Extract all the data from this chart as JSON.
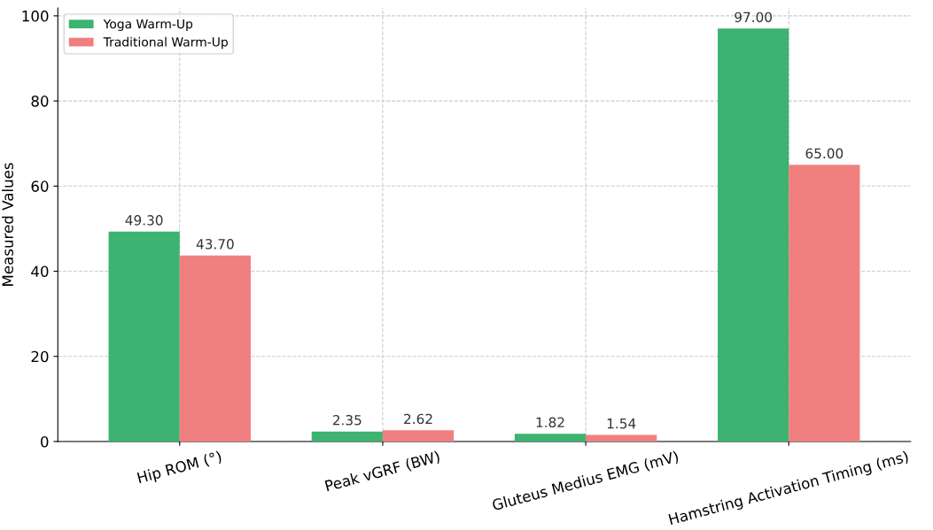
{
  "chart_data": {
    "type": "bar",
    "ylabel": "Measured Values",
    "categories": [
      "Hip ROM (°)",
      "Peak vGRF (BW)",
      "Gluteus Medius EMG (mV)",
      "Hamstring Activation Timing (ms)"
    ],
    "series": [
      {
        "name": "Yoga Warm-Up",
        "color": "#3cb371",
        "values": [
          49.3,
          2.35,
          1.82,
          97.0
        ],
        "value_labels": [
          "49.30",
          "2.35",
          "1.82",
          "97.00"
        ]
      },
      {
        "name": "Traditional Warm-Up",
        "color": "#f08080",
        "values": [
          43.7,
          2.62,
          1.54,
          65.0
        ],
        "value_labels": [
          "43.70",
          "2.62",
          "1.54",
          "65.00"
        ]
      }
    ],
    "ylim": [
      0,
      101.85
    ],
    "yticks": [
      0,
      20,
      40,
      60,
      80,
      100
    ],
    "grid": true,
    "legend": "top left"
  }
}
